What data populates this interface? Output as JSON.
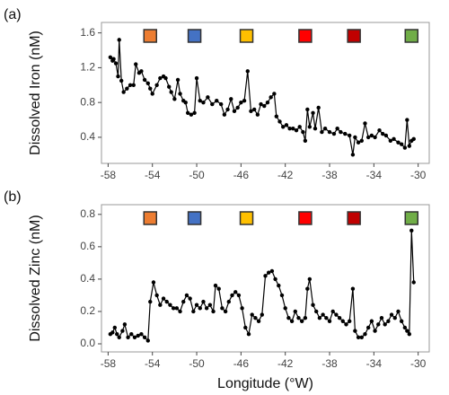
{
  "chart_data": [
    {
      "type": "line",
      "panel_label": "(a)",
      "y_label": "Dissolved Iron (nM)",
      "color": "#000000",
      "x": [
        -57.8,
        -57.6,
        -57.5,
        -57.3,
        -57.1,
        -57.0,
        -56.8,
        -56.6,
        -56.3,
        -56.0,
        -55.7,
        -55.5,
        -55.2,
        -55.0,
        -54.7,
        -54.4,
        -54.2,
        -54.0,
        -53.6,
        -53.3,
        -53.0,
        -52.8,
        -52.5,
        -52.3,
        -52.0,
        -51.7,
        -51.5,
        -51.2,
        -51.0,
        -50.8,
        -50.5,
        -50.2,
        -50.0,
        -49.7,
        -49.4,
        -49.0,
        -48.6,
        -48.2,
        -47.8,
        -47.5,
        -47.2,
        -46.9,
        -46.6,
        -46.3,
        -46.0,
        -45.7,
        -45.4,
        -45.1,
        -44.8,
        -44.5,
        -44.2,
        -43.9,
        -43.6,
        -43.3,
        -43.0,
        -42.8,
        -42.5,
        -42.2,
        -41.9,
        -41.6,
        -41.3,
        -41.0,
        -40.7,
        -40.4,
        -40.2,
        -40.0,
        -39.8,
        -39.5,
        -39.3,
        -39.0,
        -38.7,
        -38.4,
        -38.0,
        -37.6,
        -37.3,
        -37.0,
        -36.6,
        -36.2,
        -35.9,
        -35.7,
        -35.4,
        -35.1,
        -34.8,
        -34.5,
        -34.2,
        -33.9,
        -33.5,
        -33.2,
        -32.9,
        -32.5,
        -32.2,
        -31.8,
        -31.5,
        -31.2,
        -31.0,
        -30.8,
        -30.6,
        -30.4
      ],
      "values": [
        1.32,
        1.28,
        1.3,
        1.25,
        1.1,
        1.52,
        1.05,
        0.92,
        0.96,
        1.0,
        1.0,
        1.24,
        1.14,
        1.16,
        1.06,
        1.02,
        0.96,
        0.9,
        1.0,
        1.08,
        1.1,
        1.08,
        0.98,
        0.92,
        0.84,
        1.06,
        0.9,
        0.82,
        0.8,
        0.68,
        0.66,
        0.68,
        1.08,
        0.82,
        0.8,
        0.86,
        0.78,
        0.82,
        0.78,
        0.66,
        0.72,
        0.84,
        0.7,
        0.74,
        0.8,
        0.82,
        1.16,
        0.7,
        0.72,
        0.66,
        0.78,
        0.76,
        0.8,
        0.86,
        0.9,
        0.64,
        0.58,
        0.52,
        0.54,
        0.5,
        0.5,
        0.48,
        0.52,
        0.46,
        0.36,
        0.72,
        0.52,
        0.68,
        0.5,
        0.74,
        0.46,
        0.5,
        0.46,
        0.44,
        0.5,
        0.46,
        0.44,
        0.42,
        0.2,
        0.4,
        0.34,
        0.36,
        0.56,
        0.4,
        0.42,
        0.4,
        0.48,
        0.44,
        0.42,
        0.36,
        0.38,
        0.34,
        0.32,
        0.28,
        0.6,
        0.3,
        0.36,
        0.38
      ],
      "xlim": [
        -58.6,
        -29.0
      ],
      "xticks": [
        -58,
        -54,
        -50,
        -46,
        -42,
        -38,
        -34,
        -30
      ],
      "ylim": [
        0.1,
        1.72
      ],
      "yticks": [
        0.4,
        0.8,
        1.2,
        1.6
      ],
      "stations": {
        "x": [
          -54.2,
          -50.2,
          -45.5,
          -40.2,
          -35.8,
          -30.6
        ],
        "colors": [
          "#ed7d31",
          "#4472c4",
          "#ffc000",
          "#ff0000",
          "#c00000",
          "#70ad47"
        ]
      }
    },
    {
      "type": "line",
      "panel_label": "(b)",
      "y_label": "Dissolved Zinc (nM)",
      "x_label": "Longitude (°W)",
      "color": "#000000",
      "x": [
        -57.8,
        -57.6,
        -57.4,
        -57.2,
        -57.0,
        -56.7,
        -56.5,
        -56.2,
        -55.9,
        -55.6,
        -55.3,
        -55.0,
        -54.7,
        -54.4,
        -54.2,
        -53.9,
        -53.6,
        -53.3,
        -53.0,
        -52.7,
        -52.4,
        -52.1,
        -51.8,
        -51.5,
        -51.2,
        -50.9,
        -50.6,
        -50.3,
        -50.0,
        -49.7,
        -49.4,
        -49.1,
        -48.8,
        -48.5,
        -48.3,
        -48.0,
        -47.7,
        -47.4,
        -47.1,
        -46.8,
        -46.5,
        -46.2,
        -45.9,
        -45.6,
        -45.3,
        -45.0,
        -44.7,
        -44.4,
        -44.1,
        -43.8,
        -43.5,
        -43.2,
        -42.9,
        -42.6,
        -42.3,
        -42.0,
        -41.7,
        -41.4,
        -41.1,
        -40.8,
        -40.5,
        -40.2,
        -40.0,
        -39.8,
        -39.5,
        -39.2,
        -38.9,
        -38.6,
        -38.3,
        -38.0,
        -37.7,
        -37.4,
        -37.1,
        -36.8,
        -36.5,
        -36.2,
        -35.9,
        -35.7,
        -35.4,
        -35.1,
        -34.8,
        -34.5,
        -34.2,
        -33.9,
        -33.6,
        -33.3,
        -33.0,
        -32.7,
        -32.4,
        -32.1,
        -31.8,
        -31.5,
        -31.2,
        -31.0,
        -30.8,
        -30.6,
        -30.4
      ],
      "values": [
        0.06,
        0.07,
        0.1,
        0.06,
        0.04,
        0.08,
        0.12,
        0.04,
        0.06,
        0.04,
        0.05,
        0.06,
        0.04,
        0.02,
        0.26,
        0.38,
        0.3,
        0.24,
        0.28,
        0.26,
        0.24,
        0.22,
        0.22,
        0.2,
        0.26,
        0.3,
        0.28,
        0.2,
        0.24,
        0.22,
        0.26,
        0.22,
        0.24,
        0.2,
        0.36,
        0.34,
        0.22,
        0.2,
        0.26,
        0.3,
        0.32,
        0.3,
        0.22,
        0.1,
        0.06,
        0.18,
        0.16,
        0.14,
        0.18,
        0.42,
        0.44,
        0.45,
        0.4,
        0.36,
        0.3,
        0.22,
        0.16,
        0.14,
        0.2,
        0.16,
        0.14,
        0.16,
        0.34,
        0.4,
        0.24,
        0.2,
        0.16,
        0.18,
        0.16,
        0.14,
        0.2,
        0.18,
        0.16,
        0.14,
        0.12,
        0.14,
        0.34,
        0.08,
        0.04,
        0.04,
        0.06,
        0.1,
        0.14,
        0.08,
        0.12,
        0.16,
        0.12,
        0.14,
        0.18,
        0.16,
        0.2,
        0.14,
        0.1,
        0.08,
        0.06,
        0.7,
        0.38
      ],
      "xlim": [
        -58.6,
        -29.0
      ],
      "xticks": [
        -58,
        -54,
        -50,
        -46,
        -42,
        -38,
        -34,
        -30
      ],
      "ylim": [
        -0.05,
        0.86
      ],
      "yticks": [
        {
          "value": 0,
          "label": "0.0"
        },
        0.2,
        0.4,
        0.6,
        0.8
      ],
      "stations": {
        "x": [
          -54.2,
          -50.2,
          -45.5,
          -40.2,
          -35.8,
          -30.6
        ],
        "colors": [
          "#ed7d31",
          "#4472c4",
          "#ffc000",
          "#ff0000",
          "#c00000",
          "#70ad47"
        ]
      }
    }
  ]
}
